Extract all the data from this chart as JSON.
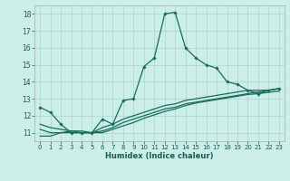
{
  "title": "",
  "xlabel": "Humidex (Indice chaleur)",
  "ylabel": "",
  "background_color": "#cceee8",
  "grid_color": "#aad4ce",
  "line_color": "#1a6b5a",
  "xlim": [
    -0.5,
    23.5
  ],
  "ylim": [
    10.5,
    18.5
  ],
  "yticks": [
    11,
    12,
    13,
    14,
    15,
    16,
    17,
    18
  ],
  "xticks": [
    0,
    1,
    2,
    3,
    4,
    5,
    6,
    7,
    8,
    9,
    10,
    11,
    12,
    13,
    14,
    15,
    16,
    17,
    18,
    19,
    20,
    21,
    22,
    23
  ],
  "line1_x": [
    0,
    1,
    2,
    3,
    4,
    5,
    6,
    7,
    8,
    9,
    10,
    11,
    12,
    13,
    14,
    15,
    16,
    17,
    18,
    19,
    20,
    21,
    22,
    23
  ],
  "line1_y": [
    12.5,
    12.2,
    11.5,
    11.0,
    11.0,
    11.0,
    11.8,
    11.5,
    12.9,
    13.0,
    14.9,
    15.4,
    18.0,
    18.1,
    16.0,
    15.4,
    15.0,
    14.8,
    14.0,
    13.85,
    13.5,
    13.3,
    13.5,
    13.6
  ],
  "line2_x": [
    0,
    1,
    2,
    3,
    4,
    5,
    6,
    7,
    8,
    9,
    10,
    11,
    12,
    13,
    14,
    15,
    16,
    17,
    18,
    19,
    20,
    21,
    22,
    23
  ],
  "line2_y": [
    11.5,
    11.3,
    11.2,
    11.1,
    11.0,
    11.0,
    11.3,
    11.5,
    11.8,
    12.0,
    12.2,
    12.4,
    12.6,
    12.7,
    12.9,
    13.0,
    13.1,
    13.2,
    13.3,
    13.4,
    13.5,
    13.5,
    13.5,
    13.6
  ],
  "line3_x": [
    0,
    1,
    2,
    3,
    4,
    5,
    6,
    7,
    8,
    9,
    10,
    11,
    12,
    13,
    14,
    15,
    16,
    17,
    18,
    19,
    20,
    21,
    22,
    23
  ],
  "line3_y": [
    11.2,
    11.0,
    11.0,
    11.0,
    11.0,
    11.0,
    11.1,
    11.3,
    11.6,
    11.8,
    12.0,
    12.2,
    12.4,
    12.5,
    12.7,
    12.8,
    12.9,
    13.0,
    13.1,
    13.2,
    13.3,
    13.4,
    13.5,
    13.6
  ],
  "line4_x": [
    0,
    1,
    2,
    3,
    4,
    5,
    6,
    7,
    8,
    9,
    10,
    11,
    12,
    13,
    14,
    15,
    16,
    17,
    18,
    19,
    20,
    21,
    22,
    23
  ],
  "line4_y": [
    10.8,
    10.8,
    11.0,
    11.1,
    11.1,
    11.0,
    11.0,
    11.2,
    11.4,
    11.6,
    11.85,
    12.05,
    12.25,
    12.4,
    12.6,
    12.75,
    12.85,
    12.95,
    13.05,
    13.15,
    13.25,
    13.3,
    13.38,
    13.45
  ]
}
